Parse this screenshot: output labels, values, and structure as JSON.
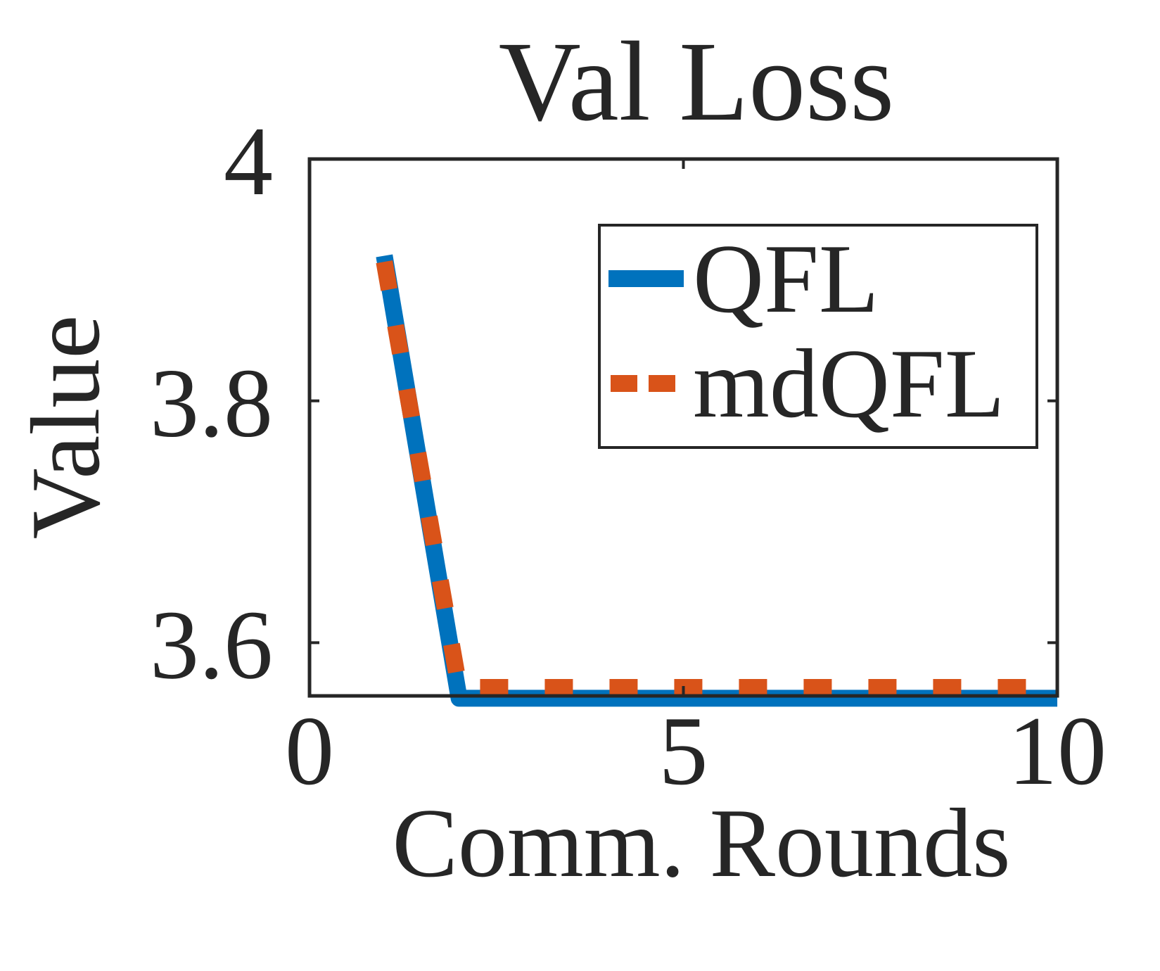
{
  "chart_data": {
    "type": "line",
    "title": "Val Loss",
    "xlabel": "Comm. Rounds",
    "ylabel": "Value",
    "xlim": [
      0,
      10
    ],
    "ylim": [
      3.556,
      4
    ],
    "xticks": [
      0,
      5,
      10
    ],
    "xtick_labels": [
      "0",
      "5",
      "10"
    ],
    "yticks": [
      3.6,
      3.8,
      4
    ],
    "ytick_labels": [
      "3.6",
      "3.8",
      "4"
    ],
    "grid": false,
    "legend_position": "top-right",
    "x": [
      1,
      2,
      3,
      4,
      5,
      6,
      7,
      8,
      9,
      10
    ],
    "series": [
      {
        "name": "QFL",
        "color": "#0072BD",
        "style": "solid",
        "values": [
          3.92,
          3.554,
          3.554,
          3.554,
          3.554,
          3.554,
          3.554,
          3.554,
          3.554,
          3.554
        ]
      },
      {
        "name": "mdQFL",
        "color": "#D95319",
        "style": "dashed",
        "values": [
          3.915,
          3.563,
          3.563,
          3.563,
          3.563,
          3.563,
          3.563,
          3.563,
          3.563,
          3.563
        ]
      }
    ]
  }
}
